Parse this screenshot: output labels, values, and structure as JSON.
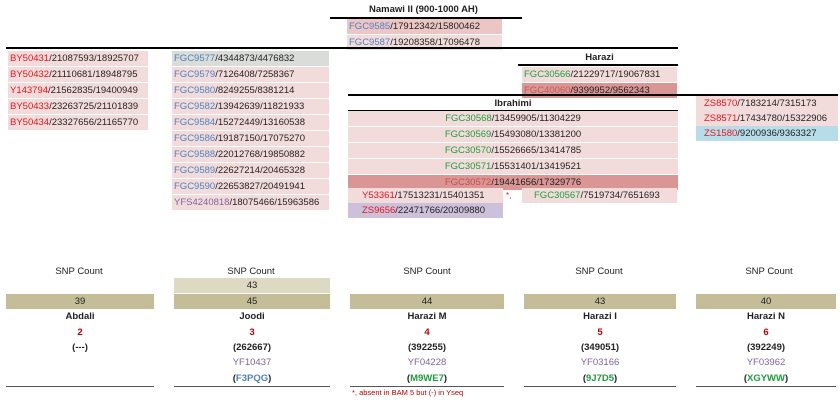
{
  "colors": {
    "red": "#e8141e",
    "blue": "#4f81bd",
    "green": "#1f9c3e",
    "purple": "#8064a2",
    "darkred": "#c00000",
    "text": "#222222"
  },
  "namawi": {
    "title": "Namawi II (900-1000 AH)",
    "rows": [
      {
        "snp": "FGC9585",
        "pos": "/17912342/15800462"
      },
      {
        "snp": "FGC9587",
        "pos": "/19208358/17096478"
      }
    ]
  },
  "col1": [
    {
      "snp": "BY50431",
      "pos": "/21087593/18925707"
    },
    {
      "snp": "BY50432",
      "pos": "/21110681/18948795"
    },
    {
      "snp": "Y143794",
      "pos": "/21562835/19400949"
    },
    {
      "snp": "BY50433",
      "pos": "/23263725/21101839"
    },
    {
      "snp": "BY50434",
      "pos": "/23327656/21165770"
    }
  ],
  "col2": [
    {
      "snp": "FGC9577",
      "pos": "/4344873/4476832"
    },
    {
      "snp": "FGC9579",
      "pos": "/7126408/7258367"
    },
    {
      "snp": "FGC9580",
      "pos": "/8249255/8381214"
    },
    {
      "snp": "FGC9582",
      "pos": "/13942639/11821933"
    },
    {
      "snp": "FGC9584",
      "pos": "/15272449/13160538"
    },
    {
      "snp": "FGC9586",
      "pos": "/19187150/17075270"
    },
    {
      "snp": "FGC9588",
      "pos": "/22012768/19850882"
    },
    {
      "snp": "FGC9589",
      "pos": "/22627214/20465328"
    },
    {
      "snp": "FGC9590",
      "pos": "/22653827/20491941"
    },
    {
      "snp": "YFS4240818",
      "pos": "/18075466/15963586"
    }
  ],
  "harazi": {
    "title": "Harazi",
    "rows": [
      {
        "snp": "FGC30566",
        "pos": "/21229717/19067831"
      },
      {
        "snp": "FGC40060",
        "pos": "/9399952/9562343"
      }
    ]
  },
  "ibrahimi": {
    "title": "Ibrahimi",
    "rows": [
      {
        "snp": "FGC30568",
        "pos": "/13459905/11304229"
      },
      {
        "snp": "FGC30569",
        "pos": "/15493080/13381200"
      },
      {
        "snp": "FGC30570",
        "pos": "/15526665/13414785"
      },
      {
        "snp": "FGC30571",
        "pos": "/15531401/13419521"
      },
      {
        "snp": "FGC30572",
        "pos": "/19441656/17329776"
      }
    ]
  },
  "y53361": {
    "snp": "Y53361",
    "pos": "/17513231/15401351",
    "star": "*,"
  },
  "fgc30567": {
    "snp": "FGC30567",
    "pos": "/7519734/7651693"
  },
  "zs9656": {
    "snp": "ZS9656",
    "pos": "/22471766/20309880"
  },
  "col5": [
    {
      "snp": "ZS8570",
      "pos": "/7183214/7315173"
    },
    {
      "snp": "ZS8571",
      "pos": "/17434780/15322906"
    },
    {
      "snp": "ZS1580",
      "pos": "/9200936/9363327"
    }
  ],
  "snp_label": "SNP Count",
  "columns": [
    {
      "count": "39",
      "name": "Abdali",
      "num": "2",
      "id": "(---)",
      "yf": "",
      "code": "",
      "extra": ""
    },
    {
      "count": "45",
      "name": "Joodi",
      "num": "3",
      "id": "(262667)",
      "yf": "YF10437",
      "code": "F3PQG",
      "extra": "43"
    },
    {
      "count": "44",
      "name": "Harazi M",
      "num": "4",
      "id": "(392255)",
      "yf": "YF04228",
      "code": "M9WE7",
      "extra": ""
    },
    {
      "count": "43",
      "name": "Harazi I",
      "num": "5",
      "id": "(349051)",
      "yf": "YF03166",
      "code": "9J7D5",
      "extra": ""
    },
    {
      "count": "40",
      "name": "Harazi N",
      "num": "6",
      "id": "(392249)",
      "yf": "YF03962",
      "code": "XGYWW",
      "extra": ""
    }
  ],
  "paren_open": "(",
  "paren_close": ")",
  "footnote": "*, absent in BAM 5 but (-) in Yseq"
}
